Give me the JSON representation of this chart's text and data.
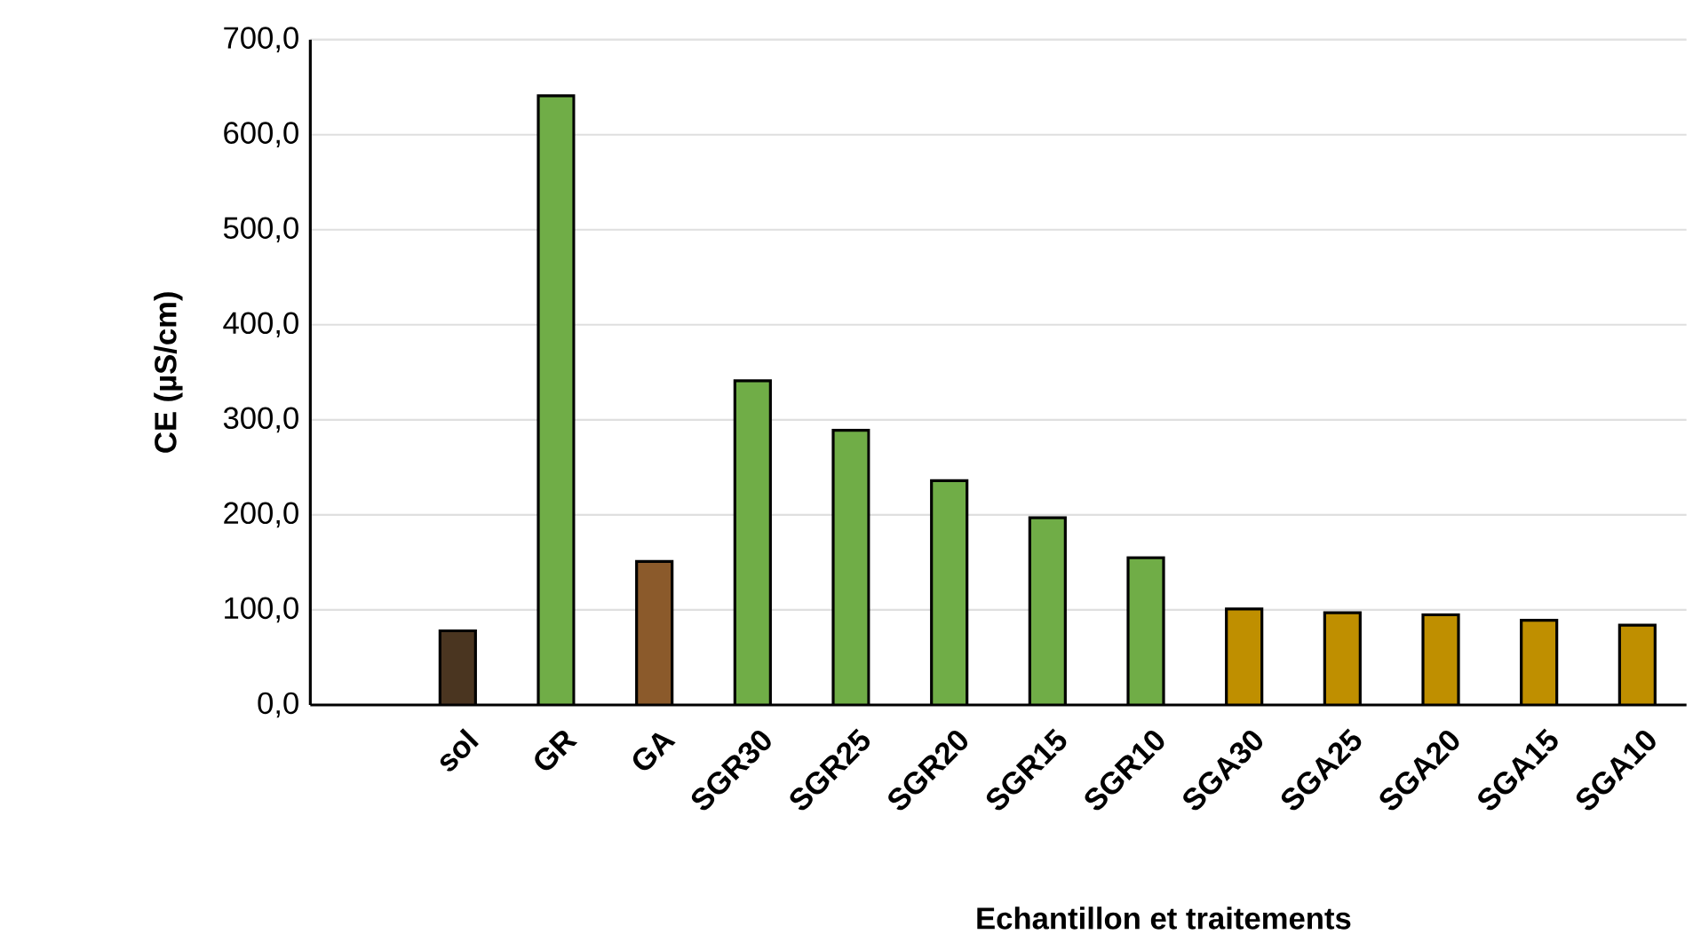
{
  "chart_data": {
    "type": "bar",
    "categories": [
      null,
      "sol",
      "GR",
      "GA",
      "SGR30",
      "SGR25",
      "SGR20",
      "SGR15",
      "SGR10",
      "SGA30",
      "SGA25",
      "SGA20",
      "SGA15",
      "SGA10"
    ],
    "values": [
      null,
      78,
      641,
      151,
      341,
      289,
      236,
      197,
      155,
      101,
      97,
      95,
      89,
      84
    ],
    "colors": [
      "#000000",
      "#4a3520",
      "#70ad47",
      "#8b5a2b",
      "#70ad47",
      "#70ad47",
      "#70ad47",
      "#70ad47",
      "#70ad47",
      "#bf8f00",
      "#bf8f00",
      "#bf8f00",
      "#bf8f00",
      "#bf8f00"
    ],
    "xlabel": "Echantillon et traitements",
    "ylabel": "CE (µS/cm)",
    "ylim": [
      0,
      700
    ],
    "yticks": [
      {
        "value": 0,
        "label": "0,0"
      },
      {
        "value": 100,
        "label": "100,0"
      },
      {
        "value": 200,
        "label": "200,0"
      },
      {
        "value": 300,
        "label": "300,0"
      },
      {
        "value": 400,
        "label": "400,0"
      },
      {
        "value": 500,
        "label": "500,0"
      },
      {
        "value": 600,
        "label": "600,0"
      },
      {
        "value": 700,
        "label": "700,0"
      }
    ],
    "grid": "y"
  }
}
